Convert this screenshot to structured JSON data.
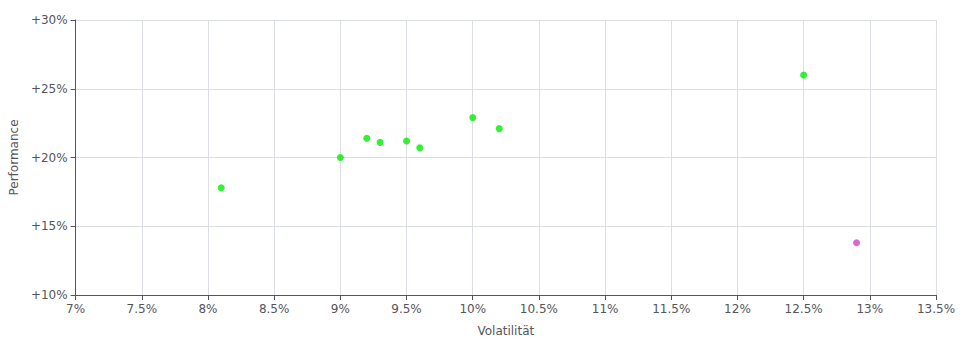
{
  "chart_data": {
    "type": "scatter",
    "xlabel": "Volatilität",
    "ylabel": "Performance",
    "xlim": [
      0.07,
      0.135
    ],
    "ylim": [
      0.1,
      0.3
    ],
    "xticks": [
      {
        "value": 0.07,
        "label": "7%"
      },
      {
        "value": 0.075,
        "label": "7.5%"
      },
      {
        "value": 0.08,
        "label": "8%"
      },
      {
        "value": 0.085,
        "label": "8.5%"
      },
      {
        "value": 0.09,
        "label": "9%"
      },
      {
        "value": 0.095,
        "label": "9.5%"
      },
      {
        "value": 0.1,
        "label": "10%"
      },
      {
        "value": 0.105,
        "label": "10.5%"
      },
      {
        "value": 0.11,
        "label": "11%"
      },
      {
        "value": 0.115,
        "label": "11.5%"
      },
      {
        "value": 0.12,
        "label": "12%"
      },
      {
        "value": 0.125,
        "label": "12.5%"
      },
      {
        "value": 0.13,
        "label": "13%"
      },
      {
        "value": 0.135,
        "label": "13.5%"
      }
    ],
    "yticks": [
      {
        "value": 0.1,
        "label": "+10%"
      },
      {
        "value": 0.15,
        "label": "+15%"
      },
      {
        "value": 0.2,
        "label": "+20%"
      },
      {
        "value": 0.25,
        "label": "+25%"
      },
      {
        "value": 0.3,
        "label": "+30%"
      }
    ],
    "grid": true,
    "series": [
      {
        "color": "#00ee00",
        "x": [
          0.081,
          0.09,
          0.092,
          0.093,
          0.095,
          0.096,
          0.1,
          0.102,
          0.125
        ],
        "values": [
          0.178,
          0.2,
          0.214,
          0.211,
          0.212,
          0.207,
          0.229,
          0.221,
          0.26
        ]
      },
      {
        "color": "#cc44cc",
        "x": [
          0.129
        ],
        "values": [
          0.138
        ]
      }
    ]
  }
}
